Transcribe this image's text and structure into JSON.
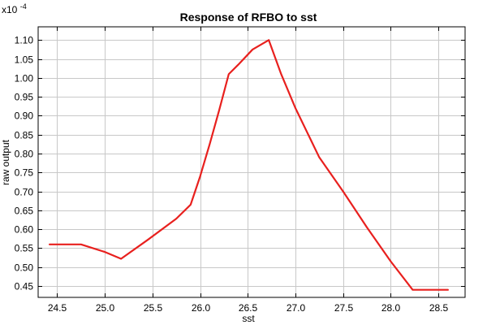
{
  "chart_data": {
    "type": "line",
    "title": "Response of RFBO to sst",
    "xlabel": "sst",
    "ylabel": "raw output",
    "y_exponent_label": "x10",
    "y_exponent_power": "-4",
    "xlim": [
      24.3,
      28.78
    ],
    "ylim": [
      0.42,
      1.135
    ],
    "x_ticks": [
      24.5,
      25.0,
      25.5,
      26.0,
      26.5,
      27.0,
      27.5,
      28.0,
      28.5
    ],
    "x_tick_labels": [
      "24.5",
      "25.0",
      "25.5",
      "26.0",
      "26.5",
      "27.0",
      "27.5",
      "28.0",
      "28.5"
    ],
    "y_ticks": [
      0.45,
      0.5,
      0.55,
      0.6,
      0.65,
      0.7,
      0.75,
      0.8,
      0.85,
      0.9,
      0.95,
      1.0,
      1.05,
      1.1
    ],
    "y_tick_labels": [
      "0.45",
      "0.50",
      "0.55",
      "0.60",
      "0.65",
      "0.70",
      "0.75",
      "0.80",
      "0.85",
      "0.90",
      "0.95",
      "1.00",
      "1.05",
      "1.10"
    ],
    "grid": true,
    "legend": "none",
    "series": [
      {
        "color": "#e8201e",
        "x": [
          24.42,
          24.75,
          25.0,
          25.17,
          25.45,
          25.75,
          25.9,
          26.0,
          26.1,
          26.2,
          26.3,
          26.4,
          26.55,
          26.72,
          26.85,
          27.0,
          27.25,
          27.5,
          27.75,
          28.0,
          28.23,
          28.6
        ],
        "y": [
          0.56,
          0.56,
          0.54,
          0.522,
          0.572,
          0.628,
          0.665,
          0.74,
          0.825,
          0.915,
          1.01,
          1.035,
          1.075,
          1.1,
          1.01,
          0.92,
          0.79,
          0.7,
          0.605,
          0.515,
          0.44,
          0.44
        ]
      }
    ]
  }
}
